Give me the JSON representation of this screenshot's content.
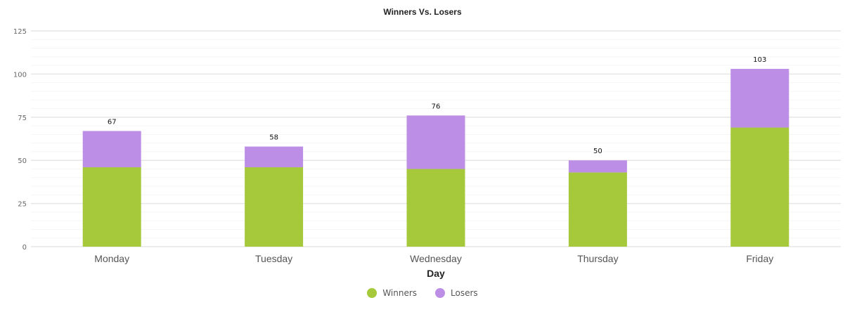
{
  "chart_data": {
    "type": "bar",
    "stacked": true,
    "title": "Winners Vs. Losers",
    "xlabel": "Day",
    "ylabel": "",
    "categories": [
      "Monday",
      "Tuesday",
      "Wednesday",
      "Thursday",
      "Friday"
    ],
    "series": [
      {
        "name": "Winners",
        "color": "#a5c93b",
        "values": [
          46,
          46,
          45,
          43,
          69
        ]
      },
      {
        "name": "Losers",
        "color": "#bc8ee6",
        "values": [
          21,
          12,
          31,
          7,
          34
        ]
      }
    ],
    "totals": [
      67,
      58,
      76,
      50,
      103
    ],
    "ylim": [
      0,
      125
    ],
    "yticks": [
      0,
      25,
      50,
      75,
      100,
      125
    ],
    "minor_step": 5,
    "grid": true,
    "legend_position": "bottom"
  }
}
